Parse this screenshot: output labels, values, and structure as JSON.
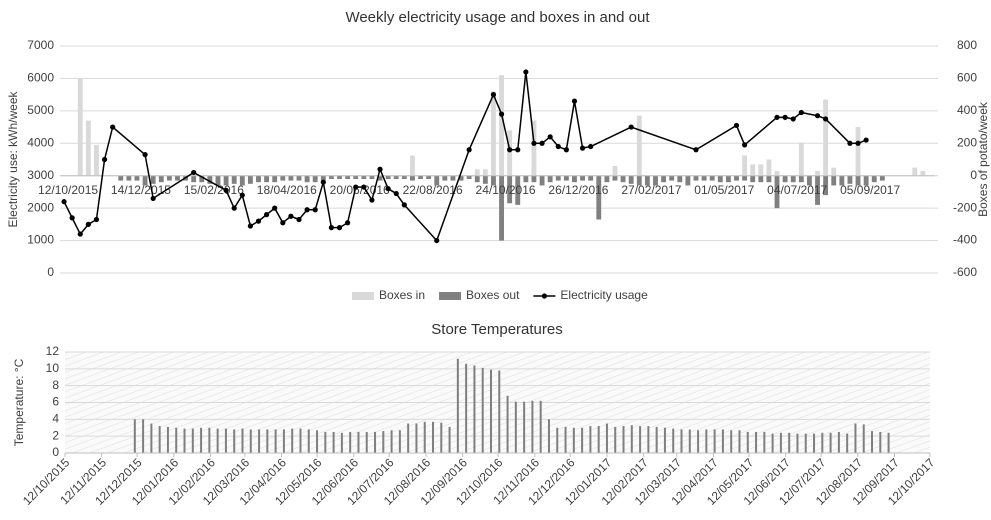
{
  "chart_data": [
    {
      "type": "combo",
      "title": "Weekly electricity usage and boxes in and out",
      "y_label": "Electricity use: kWh/week",
      "y2_label": "Boxes of potato/week",
      "categories": [
        "12/10/2015",
        null,
        null,
        null,
        null,
        null,
        null,
        null,
        null,
        "14/12/2015",
        null,
        null,
        null,
        null,
        null,
        null,
        null,
        null,
        "15/02/2016",
        null,
        null,
        null,
        null,
        null,
        null,
        null,
        null,
        "18/04/2016",
        null,
        null,
        null,
        null,
        null,
        null,
        null,
        null,
        "20/06/2016",
        null,
        null,
        null,
        null,
        null,
        null,
        null,
        null,
        "22/08/2016",
        null,
        null,
        null,
        null,
        null,
        null,
        null,
        null,
        "24/10/2016",
        null,
        null,
        null,
        null,
        null,
        null,
        null,
        null,
        "26/12/2016",
        null,
        null,
        null,
        null,
        null,
        null,
        null,
        null,
        "27/02/2017",
        null,
        null,
        null,
        null,
        null,
        null,
        null,
        null,
        "01/05/2017",
        null,
        null,
        null,
        null,
        null,
        null,
        null,
        null,
        "04/07/2017",
        null,
        null,
        null,
        null,
        null,
        null,
        null,
        null,
        "05/09/2017",
        null,
        null,
        null,
        null,
        null,
        null,
        null,
        null
      ],
      "series": [
        {
          "name": "Boxes in",
          "type": "bar",
          "axis": "y2",
          "color": "#d9d9d9",
          "values": [
            0,
            0,
            600,
            340,
            190,
            0,
            0,
            0,
            0,
            0,
            0,
            0,
            0,
            0,
            0,
            0,
            0,
            0,
            0,
            0,
            0,
            0,
            0,
            0,
            0,
            0,
            0,
            0,
            0,
            0,
            0,
            0,
            0,
            0,
            0,
            0,
            0,
            0,
            0,
            0,
            0,
            0,
            0,
            125,
            0,
            0,
            0,
            0,
            0,
            0,
            0,
            40,
            40,
            520,
            620,
            280,
            0,
            0,
            340,
            0,
            0,
            0,
            0,
            0,
            0,
            0,
            0,
            0,
            60,
            0,
            0,
            370,
            0,
            0,
            0,
            0,
            0,
            0,
            0,
            0,
            0,
            0,
            0,
            0,
            125,
            70,
            70,
            100,
            30,
            0,
            0,
            205,
            0,
            30,
            470,
            50,
            0,
            0,
            300,
            0,
            0,
            0,
            0,
            0,
            0,
            50,
            30,
            0
          ]
        },
        {
          "name": "Boxes out",
          "type": "bar",
          "axis": "y2",
          "color": "#808080",
          "values": [
            0,
            0,
            0,
            0,
            0,
            0,
            0,
            -30,
            -30,
            -30,
            -60,
            -50,
            -40,
            -30,
            -30,
            -30,
            -40,
            -40,
            -50,
            -60,
            -60,
            -50,
            -60,
            -50,
            -40,
            -40,
            -40,
            -30,
            -30,
            -30,
            -40,
            -40,
            -30,
            -20,
            -20,
            -20,
            -20,
            -20,
            -20,
            -30,
            -20,
            -20,
            -20,
            -30,
            -20,
            -20,
            -60,
            -30,
            -30,
            -30,
            -20,
            -40,
            -50,
            -60,
            -400,
            -170,
            -180,
            -40,
            -40,
            -60,
            -40,
            -30,
            -30,
            -40,
            -30,
            -30,
            -270,
            -40,
            -30,
            -40,
            -50,
            -60,
            -60,
            -60,
            -40,
            -30,
            -40,
            -60,
            -30,
            -30,
            -30,
            -40,
            -40,
            -30,
            -30,
            -40,
            -40,
            -40,
            -200,
            -40,
            -40,
            -40,
            -60,
            -180,
            -120,
            -60,
            -60,
            -50,
            -60,
            -60,
            -40,
            -30,
            0,
            0,
            0,
            0,
            0,
            0
          ]
        },
        {
          "name": "Electricity usage",
          "type": "line",
          "color": "#000000",
          "values": [
            2200,
            1700,
            1200,
            1500,
            1650,
            3500,
            4500,
            null,
            null,
            null,
            3650,
            2300,
            null,
            null,
            null,
            null,
            3100,
            null,
            null,
            null,
            2550,
            2000,
            2400,
            1450,
            1600,
            1800,
            2000,
            1550,
            1750,
            1650,
            1950,
            1950,
            2800,
            1400,
            1400,
            1550,
            2650,
            2650,
            2250,
            3200,
            2600,
            2450,
            2100,
            null,
            null,
            null,
            1000,
            null,
            null,
            null,
            3800,
            null,
            null,
            5500,
            4900,
            3800,
            3800,
            6200,
            4000,
            4000,
            4200,
            3900,
            3800,
            5300,
            3850,
            3900,
            null,
            null,
            null,
            null,
            4500,
            null,
            null,
            null,
            null,
            null,
            null,
            null,
            3800,
            null,
            null,
            null,
            null,
            4550,
            3950,
            null,
            null,
            null,
            4800,
            4800,
            4750,
            4950,
            null,
            4850,
            4750,
            null,
            null,
            4000,
            4000,
            4100,
            null,
            null,
            null,
            null,
            null,
            null,
            null,
            null
          ]
        }
      ],
      "ylim": [
        0,
        7000
      ],
      "yticks": [
        0,
        1000,
        2000,
        3000,
        4000,
        5000,
        6000,
        7000
      ],
      "y2lim": [
        -600,
        800
      ],
      "y2ticks": [
        -600,
        -400,
        -200,
        0,
        200,
        400,
        600,
        800
      ],
      "grid": true,
      "legend": "bottom"
    },
    {
      "type": "bar",
      "title": "Store Temperatures",
      "y_label": "Temperature: °C",
      "color": "#7f7f7f",
      "x": [
        "10/12/2015",
        "17/12/2015",
        "24/12/2015",
        "31/12/2015",
        "07/01/2016",
        "14/01/2016",
        "21/01/2016",
        "28/01/2016",
        "04/02/2016",
        "11/02/2016",
        "18/02/2016",
        "25/02/2016",
        "03/03/2016",
        "10/03/2016",
        "17/03/2016",
        "24/03/2016",
        "31/03/2016",
        "07/04/2016",
        "14/04/2016",
        "21/04/2016",
        "28/04/2016",
        "05/05/2016",
        "12/05/2016",
        "19/05/2016",
        "26/05/2016",
        "02/06/2016",
        "09/06/2016",
        "16/06/2016",
        "23/06/2016",
        "30/06/2016",
        "07/07/2016",
        "14/07/2016",
        "21/07/2016",
        "28/07/2016",
        "04/08/2016",
        "11/08/2016",
        "18/08/2016",
        "25/08/2016",
        "01/09/2016",
        "08/09/2016",
        "15/09/2016",
        "22/09/2016",
        "29/09/2016",
        "06/10/2016",
        "13/10/2016",
        "20/10/2016",
        "27/10/2016",
        "03/11/2016",
        "10/11/2016",
        "17/11/2016",
        "24/11/2016",
        "01/12/2016",
        "08/12/2016",
        "15/12/2016",
        "22/12/2016",
        "29/12/2016",
        "05/01/2017",
        "12/01/2017",
        "19/01/2017",
        "26/01/2017",
        "02/02/2017",
        "09/02/2017",
        "16/02/2017",
        "23/02/2017",
        "02/03/2017",
        "09/03/2017",
        "16/03/2017",
        "23/03/2017",
        "30/03/2017",
        "06/04/2017",
        "13/04/2017",
        "20/04/2017",
        "27/04/2017",
        "04/05/2017",
        "11/05/2017",
        "18/05/2017",
        "25/05/2017",
        "01/06/2017",
        "08/06/2017",
        "15/06/2017",
        "22/06/2017",
        "29/06/2017",
        "06/07/2017",
        "13/07/2017",
        "20/07/2017",
        "27/07/2017",
        "03/08/2017",
        "10/08/2017",
        "17/08/2017",
        "24/08/2017",
        "31/08/2017",
        "07/09/2017"
      ],
      "values": [
        4.0,
        4.0,
        3.5,
        3.2,
        3.1,
        3.0,
        2.9,
        2.9,
        3.0,
        3.0,
        2.9,
        2.9,
        2.8,
        2.9,
        2.8,
        2.8,
        2.8,
        2.8,
        2.8,
        2.9,
        2.9,
        2.8,
        2.7,
        2.5,
        2.5,
        2.4,
        2.5,
        2.5,
        2.5,
        2.5,
        2.6,
        2.7,
        2.7,
        3.5,
        3.5,
        3.7,
        3.7,
        3.6,
        3.1,
        11.2,
        10.6,
        10.4,
        10.1,
        9.9,
        9.8,
        6.8,
        6.1,
        6.1,
        6.2,
        6.2,
        4.0,
        3.0,
        3.1,
        3.0,
        3.0,
        3.2,
        3.2,
        3.5,
        3.1,
        3.2,
        3.3,
        3.2,
        3.2,
        3.1,
        3.0,
        2.9,
        2.8,
        2.8,
        2.7,
        2.8,
        2.8,
        2.8,
        2.7,
        2.7,
        2.5,
        2.5,
        2.5,
        2.3,
        2.4,
        2.4,
        2.3,
        2.3,
        2.3,
        2.4,
        2.4,
        2.5,
        2.3,
        3.5,
        3.4,
        2.6,
        2.5,
        2.4
      ],
      "xlim": [
        "12/10/2015",
        "12/10/2017"
      ],
      "xticks": [
        "12/10/2015",
        "12/11/2015",
        "12/12/2015",
        "12/01/2016",
        "12/02/2016",
        "12/03/2016",
        "12/04/2016",
        "12/05/2016",
        "12/06/2016",
        "12/07/2016",
        "12/08/2016",
        "12/09/2016",
        "12/10/2016",
        "12/11/2016",
        "12/12/2016",
        "12/01/2017",
        "12/02/2017",
        "12/03/2017",
        "12/04/2017",
        "12/05/2017",
        "12/06/2017",
        "12/07/2017",
        "12/08/2017",
        "12/09/2017",
        "12/10/2017"
      ],
      "ylim": [
        0,
        12
      ],
      "yticks": [
        0,
        2,
        4,
        6,
        8,
        10,
        12
      ],
      "grid": true
    }
  ]
}
